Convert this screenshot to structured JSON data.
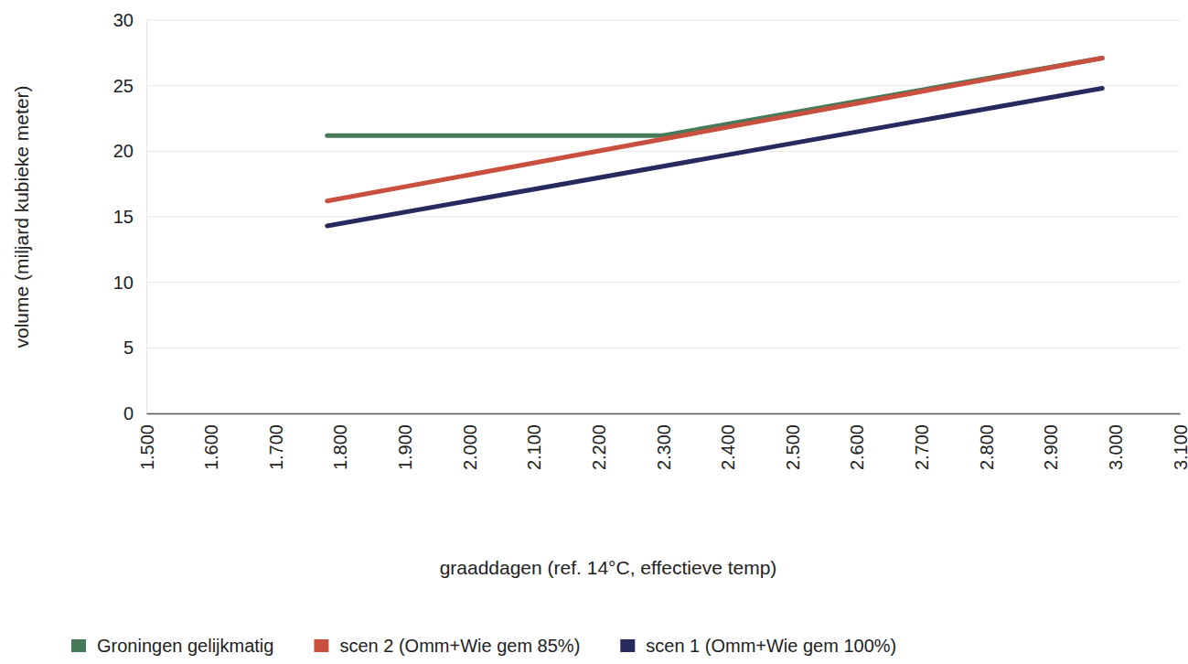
{
  "chart_data": {
    "type": "line",
    "x_label": "graaddagen (ref. 14°C, effectieve temp)",
    "y_label": "volume (miljard kubieke meter)",
    "series": [
      {
        "name": "Groningen gelijkmatig",
        "color": "#467a5a",
        "x": [
          1780,
          2300,
          2980
        ],
        "values": [
          21.2,
          21.2,
          27.1
        ]
      },
      {
        "name": "scen 2 (Omm+Wie gem 85%)",
        "color": "#c9503f",
        "x": [
          1780,
          2980
        ],
        "values": [
          16.2,
          27.1
        ]
      },
      {
        "name": "scen 1 (Omm+Wie gem 100%)",
        "color": "#262a5e",
        "x": [
          1780,
          2980
        ],
        "values": [
          14.3,
          24.8
        ]
      }
    ],
    "xlim": [
      1500,
      3100
    ],
    "xticks": [
      {
        "value": 1500,
        "label": "1.500"
      },
      {
        "value": 1600,
        "label": "1.600"
      },
      {
        "value": 1700,
        "label": "1.700"
      },
      {
        "value": 1800,
        "label": "1.800"
      },
      {
        "value": 1900,
        "label": "1.900"
      },
      {
        "value": 2000,
        "label": "2.000"
      },
      {
        "value": 2100,
        "label": "2.100"
      },
      {
        "value": 2200,
        "label": "2.200"
      },
      {
        "value": 2300,
        "label": "2.300"
      },
      {
        "value": 2400,
        "label": "2.400"
      },
      {
        "value": 2500,
        "label": "2.500"
      },
      {
        "value": 2600,
        "label": "2.600"
      },
      {
        "value": 2700,
        "label": "2.700"
      },
      {
        "value": 2800,
        "label": "2.800"
      },
      {
        "value": 2900,
        "label": "2.900"
      },
      {
        "value": 3000,
        "label": "3.000"
      },
      {
        "value": 3100,
        "label": "3.100"
      }
    ],
    "ylim": [
      0,
      30
    ],
    "yticks": [
      0,
      5,
      10,
      15,
      20,
      25,
      30
    ],
    "grid": true,
    "legend": "bottom"
  }
}
